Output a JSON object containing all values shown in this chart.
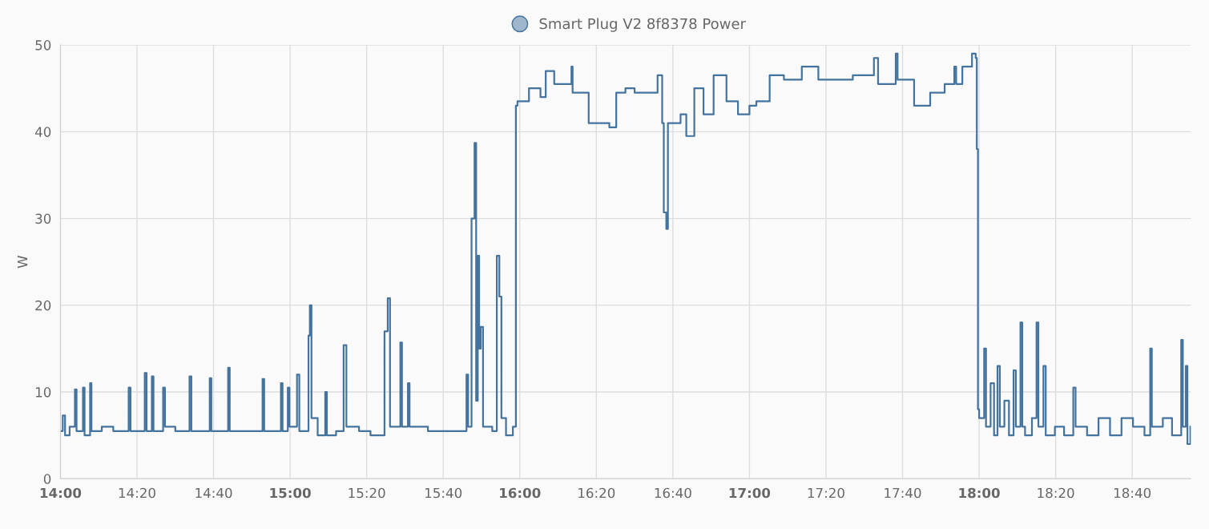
{
  "chart_data": {
    "type": "step",
    "ylabel": "W",
    "legend": "top",
    "grid": true,
    "marker": "none",
    "line_style": "solid",
    "xlim": [
      14,
      18.922
    ],
    "ylim": [
      0,
      50
    ],
    "yticks": [
      0,
      10,
      20,
      30,
      40,
      50
    ],
    "xticks": [
      {
        "value": 14,
        "label": "14:00"
      },
      {
        "value": 14.3333,
        "label": "14:20"
      },
      {
        "value": 14.6667,
        "label": "14:40"
      },
      {
        "value": 15,
        "label": "15:00"
      },
      {
        "value": 15.3333,
        "label": "15:20"
      },
      {
        "value": 15.6667,
        "label": "15:40"
      },
      {
        "value": 16,
        "label": "16:00"
      },
      {
        "value": 16.3333,
        "label": "16:20"
      },
      {
        "value": 16.6667,
        "label": "16:40"
      },
      {
        "value": 17,
        "label": "17:00"
      },
      {
        "value": 17.3333,
        "label": "17:20"
      },
      {
        "value": 17.6667,
        "label": "17:40"
      },
      {
        "value": 18,
        "label": "18:00"
      },
      {
        "value": 18.3333,
        "label": "18:20"
      },
      {
        "value": 18.6667,
        "label": "18:40"
      }
    ],
    "series": [
      {
        "name": "Smart Plug V2 8f8378 Power",
        "color": "#44739e",
        "x": [
          14.0,
          14.01,
          14.02,
          14.04,
          14.063,
          14.07,
          14.098,
          14.105,
          14.129,
          14.135,
          14.18,
          14.23,
          14.297,
          14.305,
          14.367,
          14.375,
          14.398,
          14.405,
          14.447,
          14.455,
          14.5,
          14.562,
          14.57,
          14.65,
          14.657,
          14.73,
          14.737,
          14.8,
          14.88,
          14.887,
          14.96,
          14.967,
          14.99,
          14.997,
          15.03,
          15.04,
          15.08,
          15.086,
          15.093,
          15.12,
          15.153,
          15.16,
          15.2,
          15.233,
          15.245,
          15.3,
          15.35,
          15.411,
          15.425,
          15.435,
          15.48,
          15.487,
          15.513,
          15.52,
          15.6,
          15.7,
          15.768,
          15.775,
          15.79,
          15.803,
          15.81,
          15.817,
          15.823,
          15.83,
          15.84,
          15.88,
          15.9,
          15.911,
          15.92,
          15.94,
          15.97,
          15.983,
          15.99,
          16.04,
          16.09,
          16.113,
          16.15,
          16.225,
          16.23,
          16.3,
          16.39,
          16.42,
          16.46,
          16.5,
          16.6,
          16.62,
          16.627,
          16.638,
          16.645,
          16.7,
          16.725,
          16.76,
          16.8,
          16.844,
          16.9,
          16.95,
          17.0,
          17.03,
          17.088,
          17.15,
          17.228,
          17.3,
          17.368,
          17.45,
          17.542,
          17.56,
          17.637,
          17.645,
          17.682,
          17.717,
          17.787,
          17.85,
          17.892,
          17.9,
          17.927,
          17.969,
          17.985,
          17.99,
          17.995,
          18.0,
          18.022,
          18.03,
          18.05,
          18.065,
          18.08,
          18.09,
          18.11,
          18.13,
          18.15,
          18.16,
          18.18,
          18.188,
          18.2,
          18.23,
          18.25,
          18.258,
          18.28,
          18.29,
          18.33,
          18.37,
          18.41,
          18.42,
          18.47,
          18.52,
          18.57,
          18.62,
          18.67,
          18.72,
          18.745,
          18.752,
          18.8,
          18.84,
          18.88,
          18.887,
          18.9,
          18.907,
          18.92
        ],
        "values": [
          5.5,
          7.3,
          5,
          6,
          10.3,
          5.5,
          10.5,
          5,
          11,
          5.5,
          6,
          5.5,
          10.5,
          5.5,
          12.2,
          5.5,
          11.8,
          5.5,
          10.5,
          6,
          5.5,
          11.8,
          5.5,
          11.6,
          5.5,
          12.8,
          5.5,
          5.5,
          11.5,
          5.5,
          11,
          5.5,
          10.5,
          6,
          12,
          5.5,
          16.5,
          20,
          7,
          5,
          10,
          5,
          5.5,
          15.4,
          6,
          5.5,
          5,
          17,
          20.8,
          6,
          15.7,
          6,
          11,
          6,
          5.5,
          5.5,
          12,
          6,
          30,
          38.7,
          9,
          25.7,
          15,
          17.5,
          6,
          5.5,
          25.7,
          21,
          7,
          5,
          6,
          43,
          43.5,
          45,
          44,
          47,
          45.5,
          47.5,
          44.5,
          41,
          40.5,
          44.5,
          45,
          44.5,
          46.5,
          41,
          30.7,
          28.8,
          41,
          42,
          39.5,
          45,
          42,
          46.5,
          43.5,
          42,
          43,
          43.5,
          46.5,
          46,
          47.5,
          46,
          46,
          46.5,
          48.5,
          45.5,
          49,
          46,
          46,
          43,
          44.5,
          45.5,
          47.5,
          45.5,
          47.5,
          49,
          48.5,
          38,
          8,
          7,
          15,
          6,
          11,
          5,
          13,
          6,
          9,
          5,
          12.5,
          6,
          18,
          6,
          5,
          7,
          18,
          6,
          13,
          5,
          6,
          5,
          10.5,
          6,
          5,
          7,
          5,
          7,
          6,
          5,
          15,
          6,
          7,
          5,
          16,
          6,
          13,
          4,
          6
        ]
      }
    ]
  }
}
